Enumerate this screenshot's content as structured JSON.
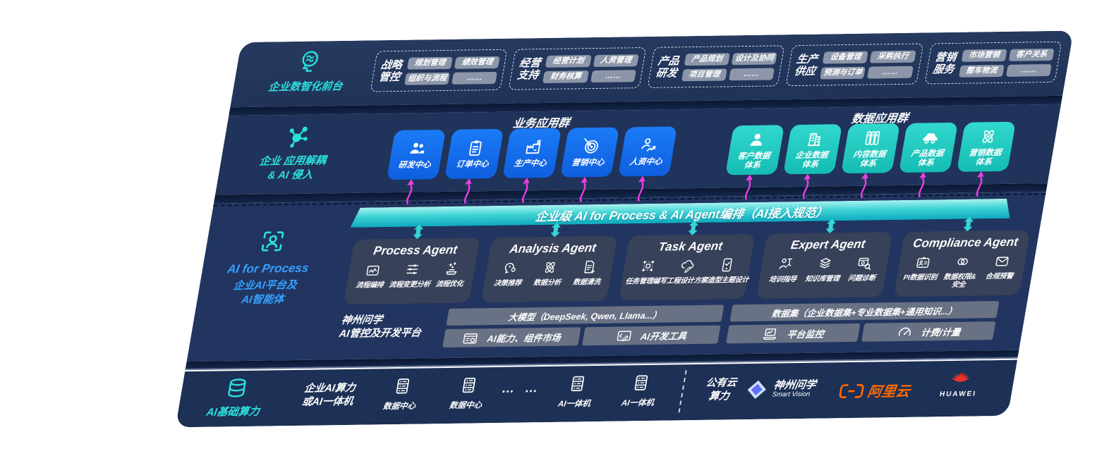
{
  "colors": {
    "panel_bg": "#203459",
    "accent_teal": "#2BE0DC",
    "accent_blue": "#35A1FF",
    "tile_blue": "#156EF2",
    "tile_teal": "#29D1C7",
    "bar_teal": "#3FD3D5",
    "magenta_arrow": "#EE3FE4",
    "pill_gray": "#969EAF",
    "agent_box": "#384258",
    "platform_pill": "#6C7485",
    "aliyun_orange": "#FF6A00",
    "huawei_red": "#E7342B"
  },
  "front_band": {
    "label": "企业数智化前台",
    "icon": "brain-icon",
    "groups": [
      {
        "name_lines": [
          "战略",
          "管控"
        ],
        "items": [
          "规划管理",
          "绩效管理",
          "组织与流程",
          "……"
        ]
      },
      {
        "name_lines": [
          "经营",
          "支持"
        ],
        "items": [
          "经营计划",
          "人资管理",
          "财务核算",
          "……"
        ]
      },
      {
        "name_lines": [
          "产品",
          "研发"
        ],
        "items": [
          "产品规划",
          "设计及协同",
          "项目管理",
          "……"
        ]
      },
      {
        "name_lines": [
          "生产",
          "供应"
        ],
        "items": [
          "设备管理",
          "采购执行",
          "预测与订单",
          "……"
        ]
      },
      {
        "name_lines": [
          "营销",
          "服务"
        ],
        "items": [
          "市场营销",
          "客户关系",
          "整车物流",
          "……"
        ]
      }
    ]
  },
  "apps_band": {
    "label_lines": [
      "企业 应用解耦",
      "& AI 侵入"
    ],
    "icon": "molecule-icon",
    "business_group": {
      "title": "业务应用群",
      "tiles": [
        {
          "label_lines": [
            "研发中心"
          ],
          "icon": "people-icon"
        },
        {
          "label_lines": [
            "订单中心"
          ],
          "icon": "clipboard-icon"
        },
        {
          "label_lines": [
            "生产中心"
          ],
          "icon": "factory-icon"
        },
        {
          "label_lines": [
            "营销中心"
          ],
          "icon": "target-icon"
        },
        {
          "label_lines": [
            "人资中心"
          ],
          "icon": "person-trend-icon"
        }
      ]
    },
    "data_group": {
      "title": "数据应用群",
      "tiles": [
        {
          "label_lines": [
            "客户数据",
            "体系"
          ],
          "icon": "person-icon"
        },
        {
          "label_lines": [
            "企业数据",
            "体系"
          ],
          "icon": "building-icon"
        },
        {
          "label_lines": [
            "内容数据",
            "体系"
          ],
          "icon": "books-icon"
        },
        {
          "label_lines": [
            "产品数据",
            "体系"
          ],
          "icon": "car-icon"
        },
        {
          "label_lines": [
            "营销数据",
            "体系"
          ],
          "icon": "atom-icon"
        }
      ]
    }
  },
  "ai_band": {
    "label_en": "AI for Process",
    "label_zh_lines": [
      "企业AI平台及",
      "AI智能体"
    ],
    "icon": "scan-person-icon",
    "orchestration_bar": "企业级 AI for Process & AI Agent编排（AI接入规范）",
    "agents": [
      {
        "title": "Process Agent",
        "items": [
          {
            "label_lines": [
              "流程编排"
            ],
            "icon": "flow-box-icon"
          },
          {
            "label_lines": [
              "流程变更分析"
            ],
            "icon": "sliders-icon"
          },
          {
            "label_lines": [
              "流程优化"
            ],
            "icon": "optimize-icon"
          }
        ]
      },
      {
        "title": "Analysis Agent",
        "items": [
          {
            "label_lines": [
              "决策推荐"
            ],
            "icon": "head-ai-icon"
          },
          {
            "label_lines": [
              "数据分析"
            ],
            "icon": "atom-icon"
          },
          {
            "label_lines": [
              "数据清洗"
            ],
            "icon": "doc-clean-icon"
          }
        ]
      },
      {
        "title": "Task Agent",
        "items": [
          {
            "label_lines": [
              "任务管理"
            ],
            "icon": "task-grid-icon"
          },
          {
            "label_lines": [
              "编写工程设计方案"
            ],
            "icon": "cloud-edit-icon"
          },
          {
            "label_lines": [
              "造型主题设计"
            ],
            "icon": "tablet-design-icon"
          }
        ]
      },
      {
        "title": "Expert Agent",
        "items": [
          {
            "label_lines": [
              "培训指导"
            ],
            "icon": "trainer-icon"
          },
          {
            "label_lines": [
              "知识库管理"
            ],
            "icon": "layers-icon"
          },
          {
            "label_lines": [
              "问题诊断"
            ],
            "icon": "diagnose-icon"
          }
        ]
      },
      {
        "title": "Compliance Agent",
        "items": [
          {
            "label_lines": [
              "PI数据识别"
            ],
            "icon": "id-card-icon"
          },
          {
            "label_lines": [
              "数据权限&",
              "安全"
            ],
            "icon": "link-shield-icon"
          },
          {
            "label_lines": [
              "合规预警"
            ],
            "icon": "alert-mail-icon"
          }
        ]
      }
    ],
    "platform": {
      "label_lines": [
        "神州问学",
        "AI管控及开发平台"
      ],
      "groups": [
        {
          "top": "大模型（DeepSeek, Qwen, Llama...）",
          "bottom": [
            {
              "label": "AI能力、组件市场",
              "icon": "market-icon"
            },
            {
              "label": "AI开发工具",
              "icon": "devtools-icon"
            }
          ]
        },
        {
          "top": "数据集（企业数据集+专业数据集+通用知识...）",
          "bottom": [
            {
              "label": "平台监控",
              "icon": "monitor-icon"
            },
            {
              "label": "计费/计量",
              "icon": "gauge-icon"
            }
          ]
        }
      ]
    }
  },
  "infra_band": {
    "label": "AI基础算力",
    "icon": "database-icon",
    "compute_label_lines": [
      "企业AI算力",
      "或AI一体机"
    ],
    "nodes": [
      {
        "label": "数据中心",
        "icon": "server-icon"
      },
      {
        "label": "数据中心",
        "icon": "server-icon"
      },
      {
        "label": "… …",
        "icon": "dots"
      },
      {
        "label": "AI一体机",
        "icon": "server-icon"
      },
      {
        "label": "AI一体机",
        "icon": "server-icon"
      }
    ],
    "public_cloud_lines": [
      "公有云",
      "算力"
    ],
    "logos": [
      {
        "name": "神州问学",
        "sub": "Smart Vision",
        "icon": "diamond-logo-icon"
      },
      {
        "name": "阿里云",
        "icon": "aliyun-bracket-icon"
      },
      {
        "name": "HUAWEI",
        "icon": "huawei-flower-icon"
      }
    ]
  }
}
